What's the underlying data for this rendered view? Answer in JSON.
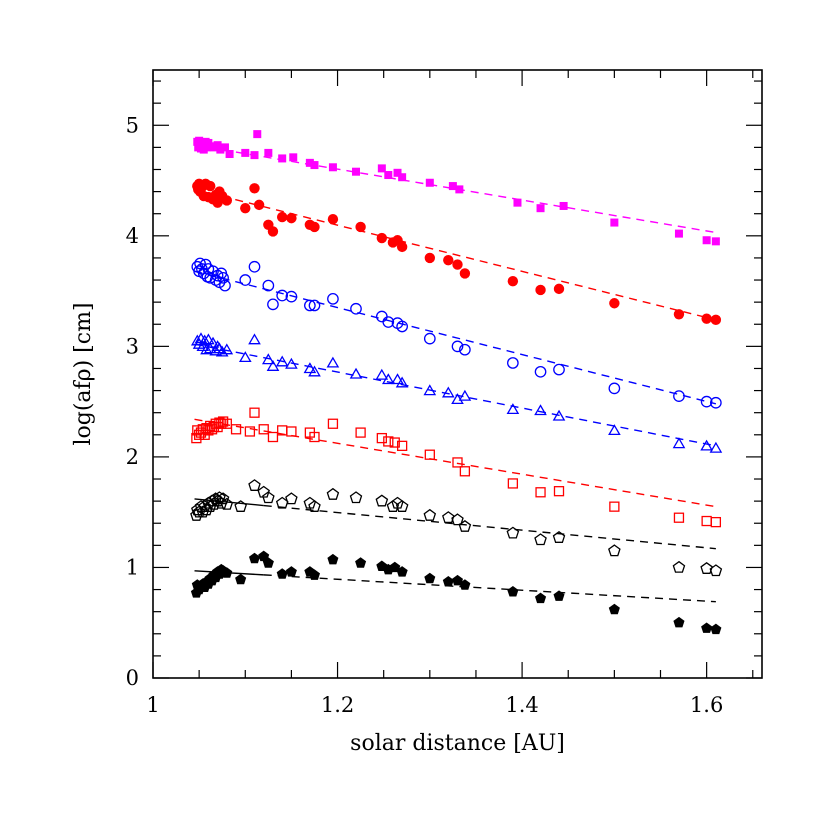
{
  "chart_data": {
    "type": "scatter",
    "xlabel": "solar distance [AU]",
    "ylabel": "log(afρ) [cm]",
    "xlim": [
      1.0,
      1.66
    ],
    "ylim": [
      0,
      5.5
    ],
    "x_ticks": [
      "1",
      "1.2",
      "1.4",
      "1.6"
    ],
    "y_ticks": [
      "0",
      "1",
      "2",
      "3",
      "4",
      "5"
    ],
    "grid": false,
    "series": [
      {
        "marker": "filled-square",
        "color": "#ff00ff",
        "x": [
          1.048,
          1.049,
          1.05,
          1.052,
          1.053,
          1.055,
          1.057,
          1.058,
          1.06,
          1.063,
          1.066,
          1.07,
          1.073,
          1.078,
          1.083,
          1.1,
          1.11,
          1.113,
          1.125,
          1.14,
          1.152,
          1.17,
          1.175,
          1.195,
          1.22,
          1.248,
          1.255,
          1.265,
          1.27,
          1.3,
          1.325,
          1.332,
          1.395,
          1.42,
          1.445,
          1.5,
          1.57,
          1.6,
          1.61
        ],
        "y": [
          4.85,
          4.8,
          4.86,
          4.79,
          4.83,
          4.78,
          4.85,
          4.8,
          4.84,
          4.81,
          4.8,
          4.82,
          4.78,
          4.8,
          4.74,
          4.75,
          4.73,
          4.92,
          4.75,
          4.7,
          4.71,
          4.66,
          4.64,
          4.62,
          4.58,
          4.61,
          4.55,
          4.57,
          4.53,
          4.48,
          4.45,
          4.42,
          4.3,
          4.25,
          4.27,
          4.12,
          4.02,
          3.96,
          3.95
        ],
        "fit": [
          [
            1.045,
            4.82
          ],
          [
            1.61,
            4.03
          ]
        ],
        "fit_color": "#ff00ff"
      },
      {
        "marker": "filled-circle",
        "color": "#ff0000",
        "x": [
          1.048,
          1.049,
          1.05,
          1.051,
          1.053,
          1.055,
          1.057,
          1.06,
          1.062,
          1.065,
          1.068,
          1.07,
          1.072,
          1.075,
          1.08,
          1.1,
          1.11,
          1.115,
          1.125,
          1.13,
          1.14,
          1.15,
          1.17,
          1.175,
          1.195,
          1.225,
          1.248,
          1.26,
          1.265,
          1.27,
          1.3,
          1.32,
          1.33,
          1.338,
          1.39,
          1.42,
          1.44,
          1.5,
          1.57,
          1.6,
          1.61
        ],
        "y": [
          4.45,
          4.42,
          4.47,
          4.4,
          4.44,
          4.36,
          4.47,
          4.35,
          4.45,
          4.33,
          4.37,
          4.3,
          4.4,
          4.36,
          4.32,
          4.25,
          4.43,
          4.28,
          4.1,
          4.04,
          4.17,
          4.16,
          4.1,
          4.08,
          4.15,
          4.08,
          3.98,
          3.94,
          3.96,
          3.9,
          3.8,
          3.78,
          3.74,
          3.66,
          3.59,
          3.51,
          3.52,
          3.39,
          3.29,
          3.25,
          3.24
        ],
        "fit": [
          [
            1.045,
            4.42
          ],
          [
            1.61,
            3.24
          ]
        ],
        "fit_color": "#ff0000"
      },
      {
        "marker": "open-circle",
        "color": "#0000ff",
        "x": [
          1.048,
          1.05,
          1.051,
          1.053,
          1.055,
          1.057,
          1.059,
          1.06,
          1.062,
          1.065,
          1.068,
          1.07,
          1.072,
          1.074,
          1.076,
          1.078,
          1.1,
          1.11,
          1.125,
          1.13,
          1.14,
          1.15,
          1.17,
          1.175,
          1.195,
          1.22,
          1.248,
          1.255,
          1.265,
          1.27,
          1.3,
          1.33,
          1.338,
          1.39,
          1.42,
          1.44,
          1.5,
          1.57,
          1.6,
          1.61
        ],
        "y": [
          3.72,
          3.68,
          3.75,
          3.7,
          3.66,
          3.74,
          3.63,
          3.7,
          3.62,
          3.68,
          3.6,
          3.64,
          3.58,
          3.66,
          3.62,
          3.55,
          3.6,
          3.72,
          3.55,
          3.38,
          3.46,
          3.45,
          3.37,
          3.37,
          3.43,
          3.34,
          3.27,
          3.22,
          3.21,
          3.18,
          3.07,
          3.0,
          2.97,
          2.85,
          2.77,
          2.79,
          2.62,
          2.55,
          2.5,
          2.49
        ],
        "fit": [
          [
            1.045,
            3.68
          ],
          [
            1.61,
            2.48
          ]
        ],
        "fit_color": "#0000ff"
      },
      {
        "marker": "open-triangle",
        "color": "#0000ff",
        "x": [
          1.048,
          1.05,
          1.052,
          1.054,
          1.056,
          1.058,
          1.06,
          1.062,
          1.065,
          1.068,
          1.07,
          1.072,
          1.075,
          1.08,
          1.1,
          1.11,
          1.125,
          1.13,
          1.14,
          1.15,
          1.17,
          1.175,
          1.195,
          1.22,
          1.248,
          1.255,
          1.265,
          1.27,
          1.3,
          1.32,
          1.33,
          1.338,
          1.39,
          1.42,
          1.44,
          1.5,
          1.57,
          1.6,
          1.61
        ],
        "y": [
          3.05,
          3.02,
          3.07,
          3.0,
          3.05,
          2.97,
          3.06,
          2.98,
          3.03,
          2.96,
          3.0,
          2.98,
          2.95,
          2.97,
          2.9,
          3.06,
          2.88,
          2.82,
          2.86,
          2.84,
          2.8,
          2.77,
          2.85,
          2.75,
          2.74,
          2.7,
          2.7,
          2.67,
          2.6,
          2.58,
          2.52,
          2.55,
          2.43,
          2.42,
          2.37,
          2.24,
          2.12,
          2.1,
          2.08
        ],
        "fit": [
          [
            1.045,
            3.02
          ],
          [
            1.61,
            2.1
          ]
        ],
        "fit_color": "#0000ff"
      },
      {
        "marker": "open-square",
        "color": "#ff0000",
        "x": [
          1.047,
          1.048,
          1.05,
          1.052,
          1.054,
          1.056,
          1.058,
          1.06,
          1.062,
          1.064,
          1.066,
          1.068,
          1.07,
          1.072,
          1.074,
          1.076,
          1.08,
          1.09,
          1.105,
          1.11,
          1.12,
          1.13,
          1.14,
          1.15,
          1.17,
          1.175,
          1.195,
          1.225,
          1.248,
          1.255,
          1.262,
          1.27,
          1.3,
          1.33,
          1.338,
          1.39,
          1.42,
          1.44,
          1.5,
          1.57,
          1.6,
          1.61
        ],
        "y": [
          2.17,
          2.24,
          2.2,
          2.22,
          2.25,
          2.2,
          2.26,
          2.24,
          2.28,
          2.25,
          2.27,
          2.3,
          2.27,
          2.31,
          2.3,
          2.32,
          2.3,
          2.25,
          2.23,
          2.4,
          2.25,
          2.18,
          2.24,
          2.23,
          2.22,
          2.18,
          2.3,
          2.22,
          2.17,
          2.14,
          2.13,
          2.1,
          2.02,
          1.95,
          1.87,
          1.76,
          1.68,
          1.69,
          1.55,
          1.45,
          1.42,
          1.41
        ],
        "fit": [
          [
            1.045,
            2.34
          ],
          [
            1.61,
            1.55
          ]
        ],
        "fit_color": "#ff0000"
      },
      {
        "marker": "open-pentagon",
        "color": "#000000",
        "x": [
          1.047,
          1.048,
          1.05,
          1.052,
          1.054,
          1.056,
          1.058,
          1.06,
          1.062,
          1.064,
          1.066,
          1.068,
          1.07,
          1.072,
          1.074,
          1.076,
          1.08,
          1.095,
          1.11,
          1.12,
          1.125,
          1.14,
          1.15,
          1.17,
          1.175,
          1.195,
          1.22,
          1.248,
          1.26,
          1.265,
          1.27,
          1.3,
          1.32,
          1.33,
          1.338,
          1.39,
          1.42,
          1.44,
          1.5,
          1.57,
          1.6,
          1.61
        ],
        "y": [
          1.47,
          1.52,
          1.5,
          1.55,
          1.5,
          1.55,
          1.52,
          1.58,
          1.55,
          1.6,
          1.57,
          1.62,
          1.6,
          1.63,
          1.58,
          1.62,
          1.57,
          1.55,
          1.74,
          1.68,
          1.63,
          1.58,
          1.62,
          1.58,
          1.55,
          1.66,
          1.63,
          1.6,
          1.55,
          1.58,
          1.55,
          1.47,
          1.45,
          1.43,
          1.37,
          1.31,
          1.25,
          1.27,
          1.15,
          1.0,
          0.99,
          0.97
        ],
        "fit": [
          [
            1.045,
            1.62
          ],
          [
            1.61,
            1.17
          ]
        ],
        "fit_color": "#000000",
        "fit_start_style": "solid"
      },
      {
        "marker": "filled-pentagon",
        "color": "#000000",
        "x": [
          1.047,
          1.048,
          1.05,
          1.052,
          1.054,
          1.056,
          1.058,
          1.06,
          1.062,
          1.064,
          1.066,
          1.068,
          1.07,
          1.072,
          1.074,
          1.076,
          1.08,
          1.095,
          1.11,
          1.12,
          1.125,
          1.14,
          1.15,
          1.17,
          1.175,
          1.195,
          1.225,
          1.248,
          1.255,
          1.262,
          1.27,
          1.3,
          1.32,
          1.33,
          1.338,
          1.39,
          1.42,
          1.44,
          1.5,
          1.57,
          1.6,
          1.61
        ],
        "y": [
          0.77,
          0.84,
          0.8,
          0.83,
          0.85,
          0.82,
          0.87,
          0.85,
          0.9,
          0.88,
          0.93,
          0.91,
          0.96,
          0.94,
          0.98,
          0.97,
          0.95,
          0.89,
          1.08,
          1.1,
          1.04,
          0.94,
          0.96,
          0.96,
          0.93,
          1.07,
          1.04,
          1.01,
          0.98,
          1.0,
          0.96,
          0.9,
          0.87,
          0.88,
          0.84,
          0.78,
          0.72,
          0.74,
          0.62,
          0.5,
          0.45,
          0.44
        ],
        "fit": [
          [
            1.045,
            0.97
          ],
          [
            1.61,
            0.69
          ]
        ],
        "fit_color": "#000000",
        "fit_start_style": "solid"
      }
    ]
  }
}
